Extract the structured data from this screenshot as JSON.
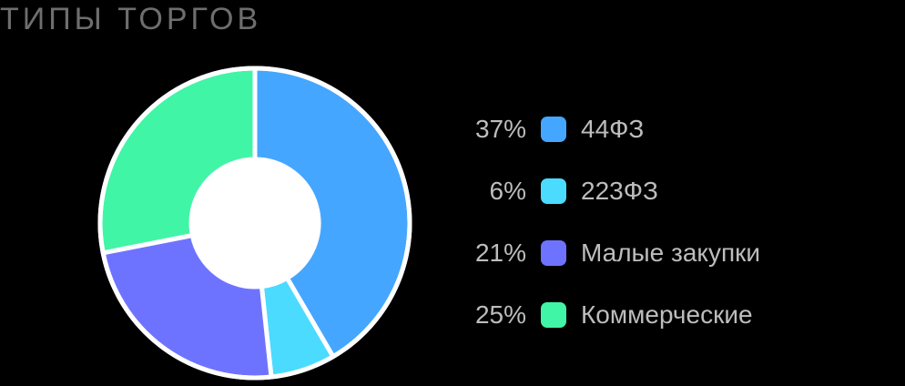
{
  "title": "ТИПЫ ТОРГОВ",
  "chart_data": {
    "type": "pie",
    "title": "ТИПЫ ТОРГОВ",
    "series": [
      {
        "name": "44ФЗ",
        "value": 37,
        "label": "37%",
        "color": "#45A6FF"
      },
      {
        "name": "223ФЗ",
        "value": 6,
        "label": "6%",
        "color": "#4BDBFF"
      },
      {
        "name": "Малые закупки",
        "value": 21,
        "label": "21%",
        "color": "#6E73FF"
      },
      {
        "name": "Коммерческие",
        "value": 25,
        "label": "25%",
        "color": "#41F5A6"
      }
    ],
    "legend": "right",
    "donut": true
  }
}
